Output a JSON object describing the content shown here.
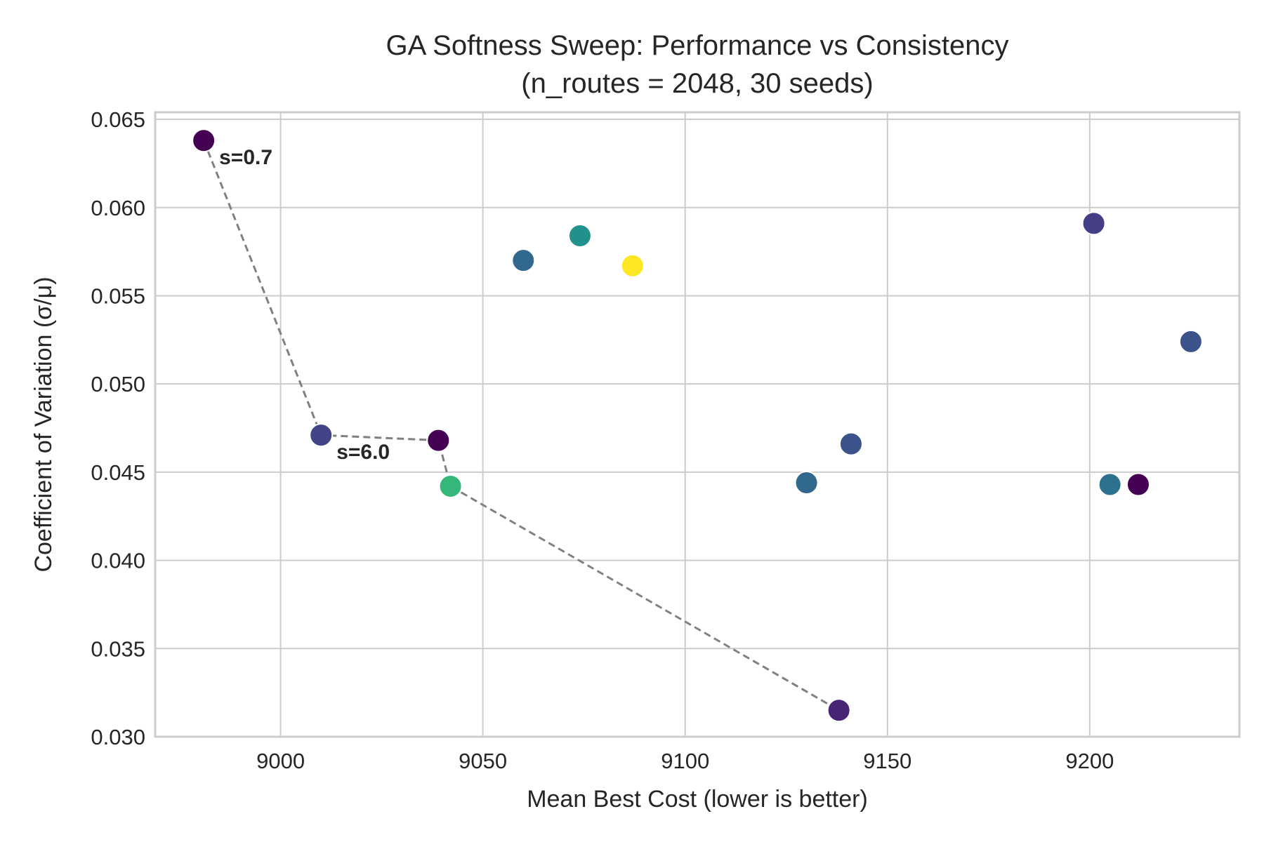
{
  "chart_data": {
    "type": "scatter",
    "title": "GA Softness Sweep: Performance vs Consistency",
    "subtitle": "(n_routes = 2048, 30 seeds)",
    "xlabel": "Mean Best Cost (lower is better)",
    "ylabel": "Coefficient of Variation (σ/μ)",
    "xlim": [
      8969,
      9237
    ],
    "ylim": [
      0.03,
      0.0654
    ],
    "xticks": [
      9000,
      9050,
      9100,
      9150,
      9200
    ],
    "xtick_labels": [
      "9000",
      "9050",
      "9100",
      "9150",
      "9200"
    ],
    "yticks": [
      0.03,
      0.035,
      0.04,
      0.045,
      0.05,
      0.055,
      0.06,
      0.065
    ],
    "ytick_labels": [
      "0.030",
      "0.035",
      "0.040",
      "0.045",
      "0.050",
      "0.055",
      "0.060",
      "0.065"
    ],
    "grid": true,
    "colormap": "viridis",
    "points": [
      {
        "x": 8981,
        "y": 0.0638,
        "color": "#440154"
      },
      {
        "x": 9010,
        "y": 0.0471,
        "color": "#414487"
      },
      {
        "x": 9039,
        "y": 0.0468,
        "color": "#440154"
      },
      {
        "x": 9042,
        "y": 0.0442,
        "color": "#35b779"
      },
      {
        "x": 9060,
        "y": 0.057,
        "color": "#31688e"
      },
      {
        "x": 9074,
        "y": 0.0584,
        "color": "#21918c"
      },
      {
        "x": 9087,
        "y": 0.0567,
        "color": "#fde725"
      },
      {
        "x": 9130,
        "y": 0.0444,
        "color": "#31688e"
      },
      {
        "x": 9138,
        "y": 0.0315,
        "color": "#482475"
      },
      {
        "x": 9141,
        "y": 0.0466,
        "color": "#3b528b"
      },
      {
        "x": 9201,
        "y": 0.0591,
        "color": "#433e85"
      },
      {
        "x": 9205,
        "y": 0.0443,
        "color": "#2c728e"
      },
      {
        "x": 9212,
        "y": 0.0443,
        "color": "#440154"
      },
      {
        "x": 9225,
        "y": 0.0524,
        "color": "#3b528b"
      }
    ],
    "pareto_frontier": {
      "x": [
        8981,
        9010,
        9039,
        9042,
        9138
      ],
      "y": [
        0.0638,
        0.0471,
        0.0468,
        0.0442,
        0.0315
      ],
      "color": "#808080"
    },
    "annotations": [
      {
        "text": "s=0.7",
        "x": 8981,
        "y": 0.0638
      },
      {
        "text": "s=6.0",
        "x": 9010,
        "y": 0.0471
      }
    ]
  }
}
